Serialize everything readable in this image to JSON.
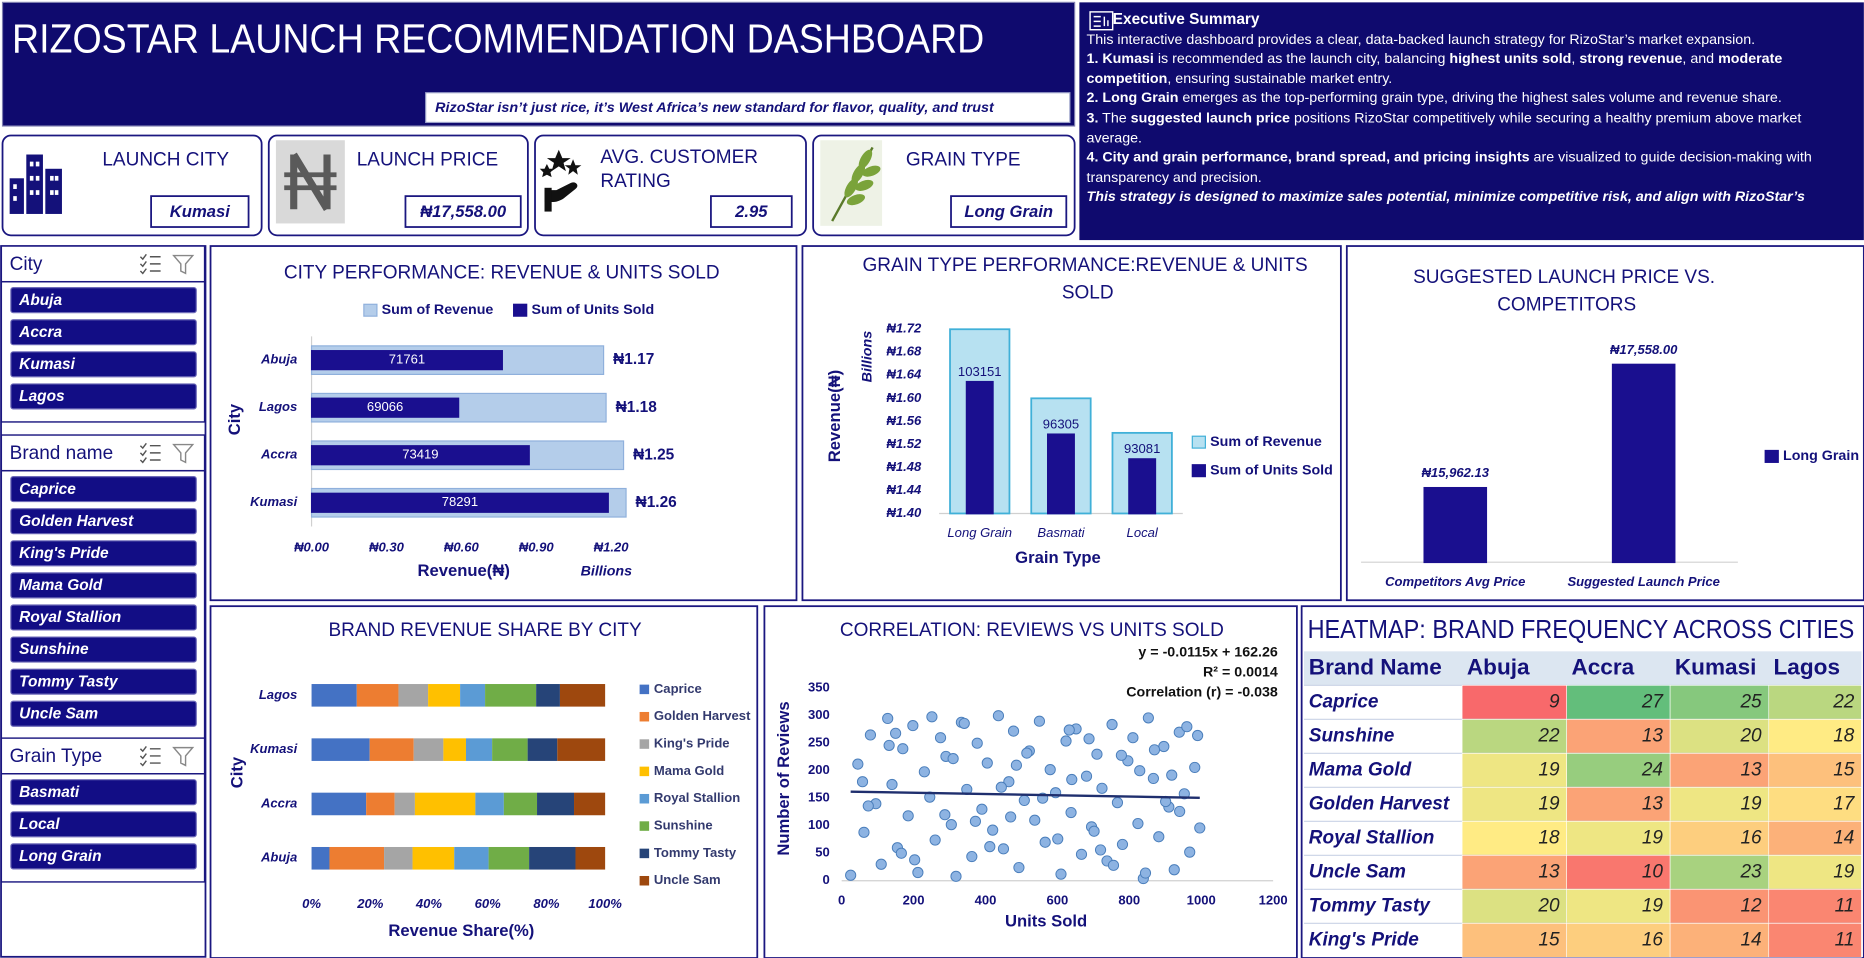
{
  "header": {
    "title": "RIZOSTAR LAUNCH RECOMMENDATION DASHBOARD",
    "tagline": "RizoStar isn’t just rice, it’s West Africa’s new standard for flavor, quality, and trust"
  },
  "executive_summary": {
    "title": "Executive Summary",
    "paragraphs": [
      [
        {
          "text": "This interactive dashboard provides a clear, data-backed launch strategy for RizoStar’s market expansion."
        }
      ],
      [
        {
          "text": "1. Kumasi",
          "bold": true
        },
        {
          "text": " is recommended as the launch city, balancing "
        },
        {
          "text": "highest units sold",
          "bold": true
        },
        {
          "text": ", "
        },
        {
          "text": "strong revenue",
          "bold": true
        },
        {
          "text": ", and "
        },
        {
          "text": "moderate competition",
          "bold": true
        },
        {
          "text": ", ensuring sustainable market entry."
        }
      ],
      [
        {
          "text": "2. Long Grain",
          "bold": true
        },
        {
          "text": " emerges as the top-performing grain type, driving the highest sales volume and revenue share."
        }
      ],
      [
        {
          "text": "3.",
          "bold": true
        },
        {
          "text": " The "
        },
        {
          "text": "suggested launch price",
          "bold": true
        },
        {
          "text": " positions RizoStar competitively while securing a healthy premium above market average."
        }
      ],
      [
        {
          "text": "4. City and grain performance, brand spread, and pricing insights",
          "bold": true
        },
        {
          "text": " are visualized to guide decision-making with transparency and precision."
        }
      ],
      [
        {
          "text": "This strategy is designed to maximize sales potential, minimize competitive risk, and align with RizoStar’s",
          "bold": true,
          "italic": true
        }
      ]
    ]
  },
  "kpis": [
    {
      "label": "LAUNCH CITY",
      "value": "Kumasi"
    },
    {
      "label": "LAUNCH PRICE",
      "value": "₦17,558.00"
    },
    {
      "label": "AVG. CUSTOMER RATING",
      "value": "2.95"
    },
    {
      "label": "GRAIN TYPE",
      "value": "Long Grain"
    }
  ],
  "slicers": [
    {
      "title": "City",
      "items": [
        "Abuja",
        "Accra",
        "Kumasi",
        "Lagos"
      ]
    },
    {
      "title": "Brand name",
      "items": [
        "Caprice",
        "Golden Harvest",
        "King's Pride",
        "Mama Gold",
        "Royal Stallion",
        "Sunshine",
        "Tommy Tasty",
        "Uncle Sam"
      ]
    },
    {
      "title": "Grain Type",
      "items": [
        "Basmati",
        "Local",
        "Long Grain"
      ]
    }
  ],
  "chart_data": [
    {
      "type": "bar",
      "orientation": "horizontal",
      "title": "CITY PERFORMANCE: REVENUE & UNITS SOLD",
      "categories": [
        "Abuja",
        "Lagos",
        "Accra",
        "Kumasi"
      ],
      "series": [
        {
          "name": "Sum of Revenue",
          "color": "#b4cdea",
          "values": [
            1.17,
            1.18,
            1.25,
            1.26
          ],
          "value_labels": [
            "₦1.17",
            "₦1.18",
            "₦1.25",
            "₦1.26"
          ]
        },
        {
          "name": "Sum of Units Sold",
          "color": "#1a0f8f",
          "axis": "x2",
          "values": [
            71761,
            69066,
            73419,
            78291
          ]
        }
      ],
      "xlim": [
        0,
        1.3
      ],
      "xticks": [
        {
          "value": 0,
          "label": "₦0.00"
        },
        {
          "value": 0.3,
          "label": "₦0.30"
        },
        {
          "value": 0.6,
          "label": "₦0.60"
        },
        {
          "value": 0.9,
          "label": "₦0.90"
        },
        {
          "value": 1.2,
          "label": "₦1.20"
        }
      ],
      "x2lim": [
        60000,
        80000
      ],
      "x_label": "Revenue(₦)",
      "x_unit_label": "Billions",
      "y_label": "City",
      "legend": "top"
    },
    {
      "type": "bar",
      "orientation": "vertical",
      "title": "GRAIN TYPE PERFORMANCE:REVENUE & UNITS SOLD",
      "categories": [
        "Long Grain",
        "Basmati",
        "Local"
      ],
      "series": [
        {
          "name": "Sum of Revenue",
          "color": "#b7e1f1",
          "values": [
            1.72,
            1.6,
            1.54
          ]
        },
        {
          "name": "Sum of Units Sold",
          "color": "#1a0f8f",
          "axis": "y2",
          "values": [
            103151,
            96305,
            93081
          ]
        }
      ],
      "ylim": [
        1.4,
        1.72
      ],
      "yticks": [
        {
          "value": 1.4,
          "label": "₦1.40"
        },
        {
          "value": 1.44,
          "label": "₦1.44"
        },
        {
          "value": 1.48,
          "label": "₦1.48"
        },
        {
          "value": 1.52,
          "label": "₦1.52"
        },
        {
          "value": 1.56,
          "label": "₦1.56"
        },
        {
          "value": 1.6,
          "label": "₦1.60"
        },
        {
          "value": 1.64,
          "label": "₦1.64"
        },
        {
          "value": 1.68,
          "label": "₦1.68"
        },
        {
          "value": 1.72,
          "label": "₦1.72"
        }
      ],
      "y2lim": [
        86000,
        110000
      ],
      "x_label": "Grain Type",
      "y_label": "Revenue(₦)",
      "y_unit_label": "Billions",
      "legend": "right"
    },
    {
      "type": "bar",
      "orientation": "vertical",
      "title": "SUGGESTED LAUNCH PRICE VS. COMPETITORS",
      "categories": [
        "Competitors Avg Price",
        "Suggested Launch Price"
      ],
      "series": [
        {
          "name": "Long Grain",
          "color": "#1a0f8f",
          "values": [
            15962.13,
            17558
          ],
          "value_labels": [
            "₦15,962.13",
            "₦17,558.00"
          ]
        }
      ],
      "ylim": [
        15000,
        18000
      ],
      "legend": "right"
    },
    {
      "type": "stacked_bar",
      "orientation": "horizontal",
      "title": "BRAND REVENUE SHARE BY CITY",
      "categories": [
        "Lagos",
        "Kumasi",
        "Accra",
        "Abuja"
      ],
      "series": [
        {
          "name": "Caprice",
          "color": "#4472c4",
          "values": [
            15.4,
            19.8,
            18.6,
            6.1
          ]
        },
        {
          "name": "Golden Harvest",
          "color": "#ed7d31",
          "values": [
            14.2,
            15,
            9.7,
            18.6
          ]
        },
        {
          "name": "King's Pride",
          "color": "#a5a5a5",
          "values": [
            10.1,
            10.1,
            6.9,
            9.7
          ]
        },
        {
          "name": "Mama Gold",
          "color": "#ffc000",
          "values": [
            10.9,
            7.7,
            20.6,
            14.2
          ]
        },
        {
          "name": "Royal Stallion",
          "color": "#5b9bd5",
          "values": [
            8.5,
            8.9,
            9.7,
            11.7
          ]
        },
        {
          "name": "Sunshine",
          "color": "#70ad47",
          "values": [
            17.4,
            12.1,
            11.3,
            13.8
          ]
        },
        {
          "name": "Tommy Tasty",
          "color": "#264478",
          "values": [
            8.1,
            10.1,
            12.6,
            15.8
          ]
        },
        {
          "name": "Uncle Sam",
          "color": "#9e480e",
          "values": [
            15.4,
            16.3,
            10.6,
            10.1
          ]
        }
      ],
      "xlim": [
        0,
        100
      ],
      "xticks": [
        {
          "value": 0,
          "label": "0%"
        },
        {
          "value": 20,
          "label": "20%"
        },
        {
          "value": 40,
          "label": "40%"
        },
        {
          "value": 60,
          "label": "60%"
        },
        {
          "value": 80,
          "label": "80%"
        },
        {
          "value": 100,
          "label": "100%"
        }
      ],
      "x_label": "Revenue Share(%)",
      "y_label": "City",
      "legend": "right"
    },
    {
      "type": "scatter",
      "title": "CORRELATION: REVIEWS VS UNITS SOLD",
      "color": "#8db3e2",
      "x": [
        45,
        62,
        80,
        95,
        110,
        128,
        140,
        155,
        170,
        185,
        198,
        212,
        230,
        245,
        260,
        275,
        290,
        305,
        318,
        333,
        348,
        362,
        377,
        390,
        405,
        420,
        436,
        450,
        465,
        478,
        493,
        508,
        522,
        537,
        550,
        566,
        580,
        595,
        610,
        624,
        638,
        652,
        667,
        681,
        695,
        710,
        724,
        738,
        752,
        767,
        781,
        796,
        810,
        824,
        839,
        853,
        867,
        882,
        896,
        910,
        925,
        939,
        953,
        968,
        982,
        996,
        58,
        132,
        203,
        287,
        341,
        412,
        486,
        559,
        633,
        702,
        778,
        845,
        918,
        990,
        74,
        166,
        251,
        372,
        444,
        515,
        601,
        688,
        756,
        829,
        901,
        960,
        25,
        310,
        470,
        640,
        720,
        870,
        940,
        150
      ],
      "y": [
        212,
        88,
        265,
        140,
        30,
        295,
        175,
        60,
        240,
        118,
        282,
        15,
        198,
        152,
        74,
        260,
        226,
        102,
        8,
        288,
        166,
        44,
        250,
        130,
        214,
        92,
        300,
        58,
        180,
        272,
        24,
        146,
        236,
        110,
        290,
        70,
        202,
        160,
        12,
        254,
        124,
        276,
        48,
        190,
        98,
        230,
        168,
        36,
        284,
        142,
        66,
        218,
        260,
        104,
        4,
        296,
        186,
        80,
        244,
        134,
        20,
        270,
        158,
        52,
        206,
        96,
        180,
        246,
        38,
        120,
        286,
        62,
        210,
        150,
        274,
        90,
        228,
        14,
        192,
        264,
        136,
        50,
        298,
        108,
        170,
        232,
        76,
        258,
        28,
        200,
        144,
        280,
        10,
        222,
        116,
        184,
        56,
        238,
        126,
        268
      ],
      "trendline": {
        "slope": -0.0115,
        "intercept": 162.26,
        "color": "#1f2f6e"
      },
      "annotations": [
        "y = -0.0115x + 162.26",
        "R² = 0.0014",
        "Correlation (r) = -0.038"
      ],
      "xlim": [
        0,
        1200
      ],
      "xticks": [
        0,
        200,
        400,
        600,
        800,
        1000,
        1200
      ],
      "ylim": [
        0,
        350
      ],
      "yticks": [
        0,
        50,
        100,
        150,
        200,
        250,
        300,
        350
      ],
      "x_label": "Units Sold",
      "y_label": "Number of Reviews"
    },
    {
      "type": "heatmap",
      "title": "HEATMAP: BRAND FREQUENCY ACROSS CITIES",
      "columns": [
        "Brand Name",
        "Abuja",
        "Accra",
        "Kumasi",
        "Lagos"
      ],
      "rows": [
        [
          "Caprice",
          9,
          27,
          25,
          22
        ],
        [
          "Sunshine",
          22,
          13,
          20,
          18
        ],
        [
          "Mama Gold",
          19,
          24,
          13,
          15
        ],
        [
          "Golden Harvest",
          19,
          13,
          19,
          17
        ],
        [
          "Royal Stallion",
          18,
          19,
          16,
          14
        ],
        [
          "Uncle Sam",
          13,
          10,
          23,
          19
        ],
        [
          "Tommy Tasty",
          20,
          19,
          12,
          11
        ],
        [
          "King's Pride",
          15,
          16,
          14,
          11
        ]
      ],
      "colors": [
        "#f8696b",
        "#ffeb84",
        "#63be7b"
      ]
    }
  ]
}
